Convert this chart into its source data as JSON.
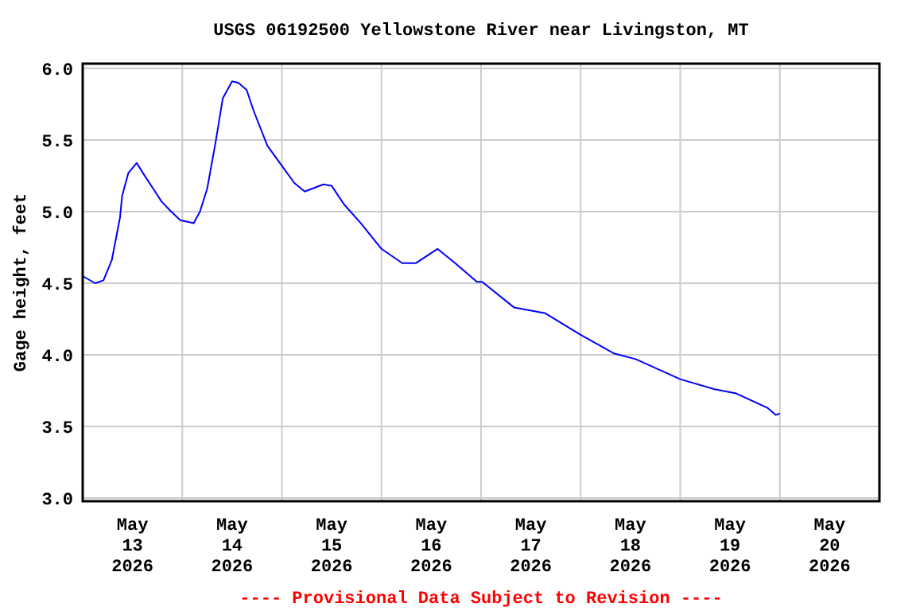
{
  "chart_data": {
    "type": "line",
    "title": "USGS 06192500 Yellowstone River near Livingston, MT",
    "ylabel": "Gage height, feet",
    "annotations": [
      "---- Provisional Data Subject to Revision ----"
    ],
    "x": [
      "2026-05-13T00:00",
      "2026-05-13T03:00",
      "2026-05-13T05:00",
      "2026-05-13T07:00",
      "2026-05-13T09:00",
      "2026-05-13T09:30",
      "2026-05-13T11:00",
      "2026-05-13T13:00",
      "2026-05-13T14:30",
      "2026-05-13T17:00",
      "2026-05-13T19:00",
      "2026-05-13T21:00",
      "2026-05-13T23:30",
      "2026-05-14T02:45",
      "2026-05-14T04:15",
      "2026-05-14T06:00",
      "2026-05-14T08:00",
      "2026-05-14T09:45",
      "2026-05-14T12:00",
      "2026-05-14T13:30",
      "2026-05-14T15:30",
      "2026-05-14T17:15",
      "2026-05-14T20:30",
      "2026-05-14T23:45",
      "2026-05-15T03:00",
      "2026-05-15T05:30",
      "2026-05-15T10:00",
      "2026-05-15T12:00",
      "2026-05-15T15:00",
      "2026-05-15T19:00",
      "2026-05-16T00:00",
      "2026-05-16T05:00",
      "2026-05-16T08:15",
      "2026-05-16T13:30",
      "2026-05-16T17:45",
      "2026-05-16T23:00",
      "2026-05-17T00:15",
      "2026-05-17T08:00",
      "2026-05-17T15:30",
      "2026-05-18T00:00",
      "2026-05-18T08:00",
      "2026-05-18T13:15",
      "2026-05-19T00:00",
      "2026-05-19T08:15",
      "2026-05-19T13:30",
      "2026-05-19T21:00",
      "2026-05-19T23:00",
      "2026-05-20T00:00"
    ],
    "series": [
      {
        "color": "#0000ff",
        "values": [
          4.55,
          4.5,
          4.52,
          4.66,
          4.96,
          5.11,
          5.27,
          5.34,
          5.27,
          5.16,
          5.07,
          5.01,
          4.94,
          4.92,
          5.0,
          5.16,
          5.48,
          5.79,
          5.91,
          5.9,
          5.85,
          5.7,
          5.46,
          5.33,
          5.2,
          5.14,
          5.19,
          5.18,
          5.05,
          4.92,
          4.74,
          4.64,
          4.64,
          4.74,
          4.64,
          4.51,
          4.51,
          4.33,
          4.29,
          4.14,
          4.01,
          3.97,
          3.83,
          3.76,
          3.73,
          3.63,
          3.58,
          3.59
        ]
      }
    ],
    "xlim": [
      "2026-05-13",
      "2026-05-21"
    ],
    "xticks": [
      {
        "value": "2026-05-13T12:00",
        "label": "May\n13\n2026"
      },
      {
        "value": "2026-05-14T00:00",
        "label": null
      },
      {
        "value": "2026-05-14T12:00",
        "label": "May\n14\n2026"
      },
      {
        "value": "2026-05-15T00:00",
        "label": null
      },
      {
        "value": "2026-05-15T12:00",
        "label": "May\n15\n2026"
      },
      {
        "value": "2026-05-16T00:00",
        "label": null
      },
      {
        "value": "2026-05-16T12:00",
        "label": "May\n16\n2026"
      },
      {
        "value": "2026-05-17T00:00",
        "label": null
      },
      {
        "value": "2026-05-17T12:00",
        "label": "May\n17\n2026"
      },
      {
        "value": "2026-05-18T00:00",
        "label": null
      },
      {
        "value": "2026-05-18T12:00",
        "label": "May\n18\n2026"
      },
      {
        "value": "2026-05-19T00:00",
        "label": null
      },
      {
        "value": "2026-05-19T12:00",
        "label": "May\n19\n2026"
      },
      {
        "value": "2026-05-20T00:00",
        "label": null
      },
      {
        "value": "2026-05-20T12:00",
        "label": "May\n20\n2026"
      }
    ],
    "ylim": [
      3.0,
      6.0
    ],
    "yticks": [
      {
        "value": 3.0,
        "label": "3.0"
      },
      {
        "value": 3.5,
        "label": "3.5"
      },
      {
        "value": 4.0,
        "label": "4.0"
      },
      {
        "value": 4.5,
        "label": "4.5"
      },
      {
        "value": 5.0,
        "label": "5.0"
      },
      {
        "value": 5.5,
        "label": "5.5"
      },
      {
        "value": 6.0,
        "label": "6.0"
      }
    ],
    "grid": true,
    "marker": "none",
    "line_style": "solid"
  }
}
